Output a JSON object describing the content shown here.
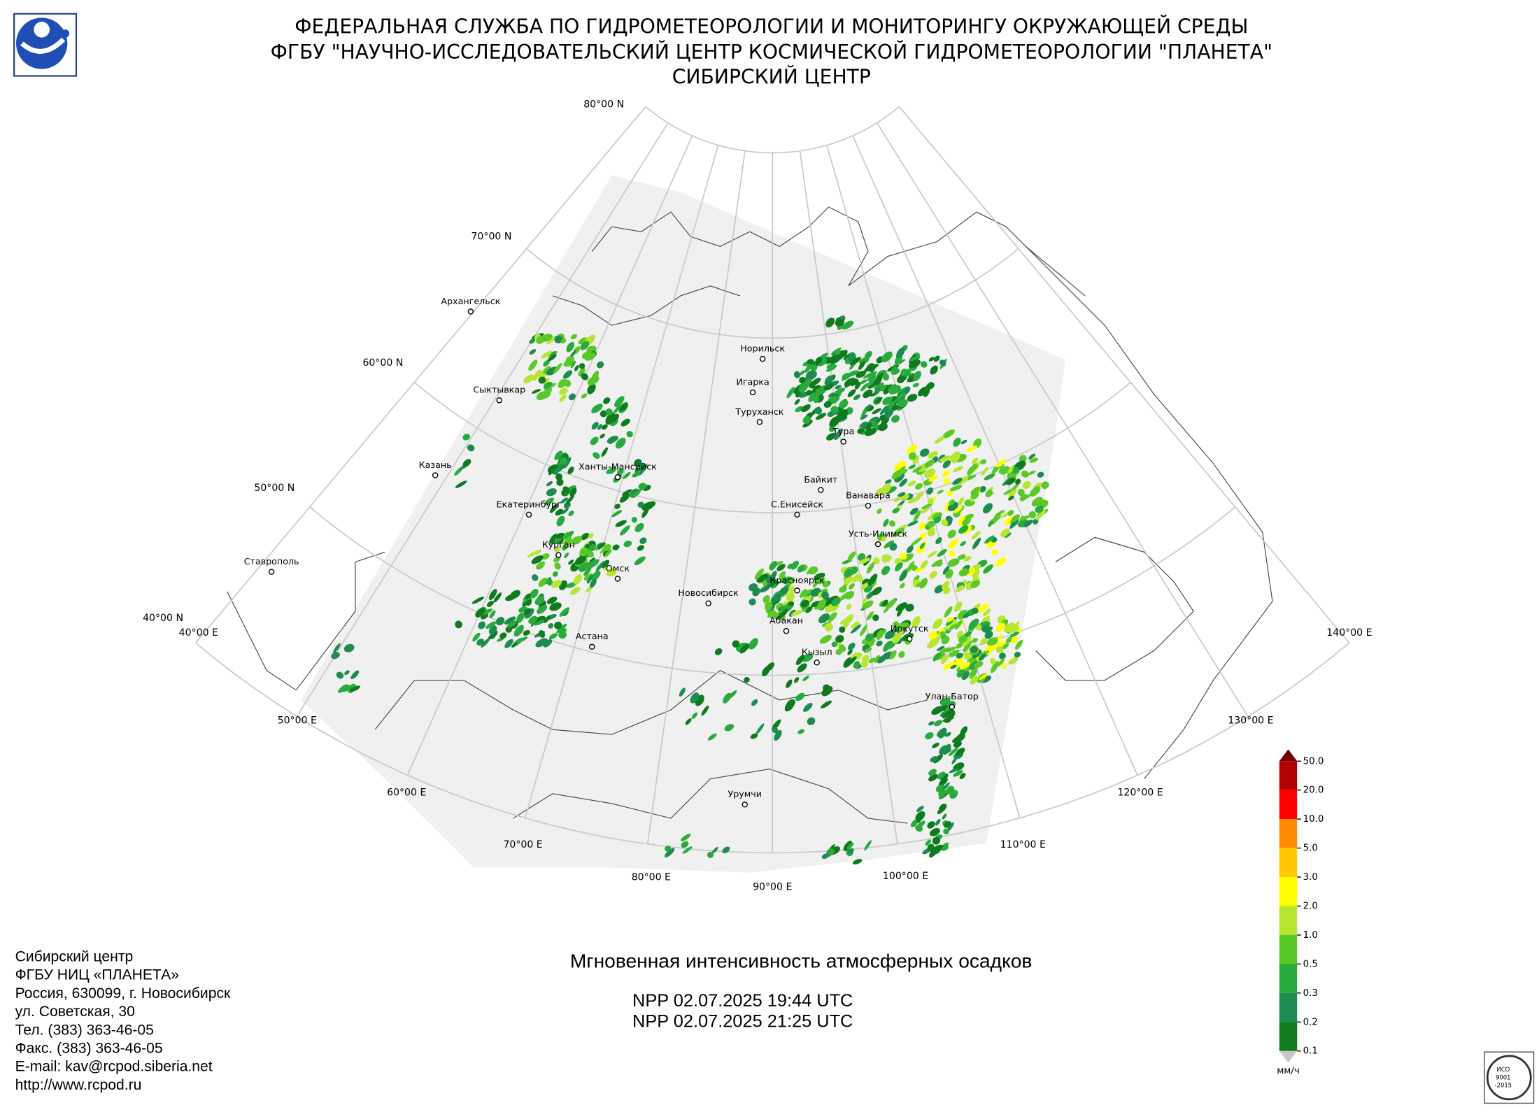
{
  "header": {
    "lines": [
      "ФЕДЕРАЛЬНАЯ СЛУЖБА ПО ГИДРОМЕТЕОРОЛОГИИ И МОНИТОРИНГУ ОКРУЖАЮЩЕЙ СРЕДЫ",
      "ФГБУ \"НАУЧНО-ИССЛЕДОВАТЕЛЬСКИЙ ЦЕНТР КОСМИЧЕСКОЙ ГИДРОМЕТЕОРОЛОГИИ \"ПЛАНЕТА\"",
      "СИБИРСКИЙ ЦЕНТР"
    ]
  },
  "map": {
    "lat_labels": [
      "80°00 N",
      "70°00 N",
      "60°00 N",
      "50°00 N",
      "40°00 N"
    ],
    "lon_labels": [
      "40°00 E",
      "50°00 E",
      "60°00 E",
      "70°00 E",
      "80°00 E",
      "90°00 E",
      "100°00 E",
      "110°00 E",
      "120°00 E",
      "130°00 E",
      "140°00 E"
    ],
    "cities": [
      "Архангельск",
      "Сыктывкар",
      "Казань",
      "Екатеринбург",
      "Ставрополь",
      "Курган",
      "Омск",
      "Астана",
      "Ханты-Мансийск",
      "Новосибирск",
      "Норильск",
      "Игарка",
      "Туруханск",
      "Тура",
      "Байкит",
      "С.Енисейск",
      "Ванавара",
      "Усть-Илимск",
      "Красноярск",
      "Абакан",
      "Кызыл",
      "Иркутск",
      "Улан-Батор",
      "Урумчи"
    ]
  },
  "legend": {
    "levels": [
      {
        "value": 50,
        "label": "50.0"
      },
      {
        "value": 20,
        "label": "20.0"
      },
      {
        "value": 10,
        "label": "10.0"
      },
      {
        "value": 5,
        "label": "5.0"
      },
      {
        "value": 3,
        "label": "3.0"
      },
      {
        "value": 2,
        "label": "2.0"
      },
      {
        "value": 1,
        "label": "1.0"
      },
      0.5,
      0.3,
      0.2,
      0.1
    ],
    "colors": [
      "#b30000",
      "#ff0000",
      "#ff8c00",
      "#ffc800",
      "#ffff00",
      "#b4e632",
      "#5ac828",
      "#28aa3c",
      "#1e8c50",
      "#0f7a1e"
    ],
    "over_color": "#6e0000",
    "under_color": "#c8c8c8",
    "unit": "мм/ч"
  },
  "title": "Мгновенная интенсивность атмосферных осадков",
  "passes": [
    "NPP 02.07.2025  19:44 UTC",
    "NPP 02.07.2025  21:25 UTC"
  ],
  "footer": {
    "lines": [
      "Сибирский центр",
      "ФГБУ НИЦ «ПЛАНЕТА»",
      "Россия, 630099, г. Новосибирск",
      "ул. Советская, 30",
      "Тел. (383) 363-46-05",
      "Факс. (383) 363-46-05",
      "E-mail: kav@rcpod.siberia.net",
      "http://www.rcpod.ru"
    ]
  },
  "badge": {
    "lines": [
      "ИСО",
      "9001",
      "-2015"
    ]
  }
}
